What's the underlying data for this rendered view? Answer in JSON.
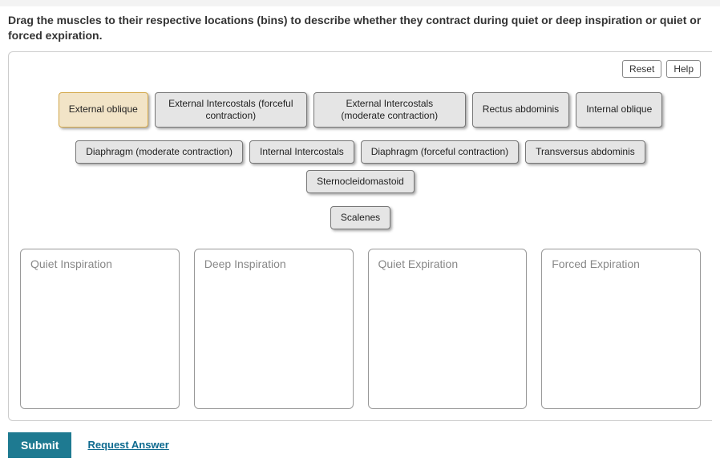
{
  "instructions": "Drag the muscles to their respective locations (bins) to describe whether they contract during quiet or deep inspiration or quiet or forced expiration.",
  "controls": {
    "reset": "Reset",
    "help": "Help"
  },
  "items": {
    "row1": [
      {
        "label": "External oblique",
        "selected": true
      },
      {
        "label": "External Intercostals (forceful contraction)",
        "wide": true
      },
      {
        "label": "External Intercostals (moderate contraction)",
        "wide": true
      },
      {
        "label": "Rectus abdominis"
      },
      {
        "label": "Internal oblique"
      }
    ],
    "row2": [
      {
        "label": "Diaphragm (moderate contraction)"
      },
      {
        "label": "Internal Intercostals"
      },
      {
        "label": "Diaphragm (forceful contraction)"
      },
      {
        "label": "Transversus abdominis"
      },
      {
        "label": "Sternocleidomastoid"
      }
    ],
    "row3": [
      {
        "label": "Scalenes"
      }
    ]
  },
  "bins": [
    {
      "label": "Quiet Inspiration"
    },
    {
      "label": "Deep Inspiration"
    },
    {
      "label": "Quiet Expiration"
    },
    {
      "label": "Forced Expiration"
    }
  ],
  "footer": {
    "submit": "Submit",
    "request": "Request Answer"
  }
}
